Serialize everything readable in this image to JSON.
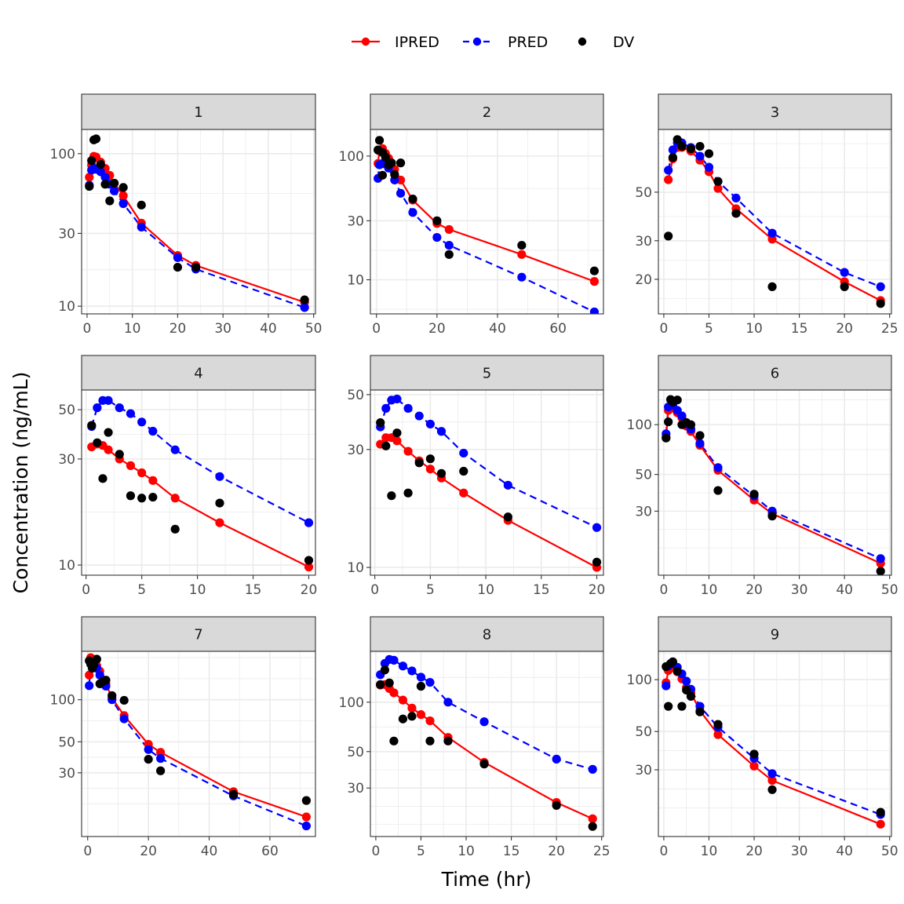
{
  "chart_data": {
    "type": "line",
    "facet": "ID",
    "xlabel": "Time (hr)",
    "ylabel": "Concentration (ng/mL)",
    "yscale": "log10",
    "legend": {
      "position": "top",
      "entries": [
        {
          "name": "IPRED",
          "color": "#ff0000",
          "style": "solid line with points"
        },
        {
          "name": "PRED",
          "color": "#0000ff",
          "style": "dashed line with points"
        },
        {
          "name": "DV",
          "color": "#000000",
          "style": "points"
        }
      ]
    },
    "colors": {
      "IPRED": "#ff0000",
      "PRED": "#0000ff",
      "DV": "#000000"
    },
    "panels": [
      {
        "id": "1",
        "xlim": [
          -1.2,
          50.4
        ],
        "xticks": [
          0,
          10,
          20,
          30,
          40,
          50
        ],
        "ylim": [
          8.9,
          144
        ],
        "yticks": [
          10,
          30,
          100
        ],
        "x": [
          0.5,
          1,
          1.5,
          2,
          3,
          4,
          5,
          6,
          8,
          12,
          20,
          24,
          48
        ],
        "IPRED": [
          70,
          84,
          96,
          95,
          88,
          80,
          72,
          64,
          53,
          35,
          21.5,
          18.5,
          10.6
        ],
        "PRED": [
          62,
          78,
          80,
          79,
          76,
          70,
          63,
          57,
          47,
          33,
          20.8,
          17.5,
          9.8
        ],
        "DV": [
          [
            0.5,
            61
          ],
          [
            1,
            90
          ],
          [
            1.5,
            123
          ],
          [
            2,
            125
          ],
          [
            3,
            85
          ],
          [
            4,
            63
          ],
          [
            5,
            49
          ],
          [
            6,
            64
          ],
          [
            8,
            60
          ],
          [
            12,
            46
          ],
          [
            20,
            18
          ],
          [
            24,
            18
          ],
          [
            48,
            11
          ]
        ]
      },
      {
        "id": "2",
        "xlim": [
          -2,
          75
        ],
        "xticks": [
          0,
          20,
          40,
          60
        ],
        "ylim": [
          5.3,
          164
        ],
        "yticks": [
          10,
          30,
          100
        ],
        "x": [
          0.5,
          1,
          2,
          3,
          4,
          6,
          8,
          12,
          20,
          24,
          48,
          72
        ],
        "IPRED": [
          87,
          110,
          115,
          105,
          96,
          78,
          64,
          44,
          28.5,
          25.5,
          16,
          9.7
        ],
        "PRED": [
          66,
          85,
          87,
          86,
          80,
          64,
          50,
          35,
          22,
          19,
          10.5,
          5.5
        ],
        "DV": [
          [
            0.5,
            112
          ],
          [
            1,
            134
          ],
          [
            2,
            107
          ],
          [
            3,
            98
          ],
          [
            4,
            85
          ],
          [
            5,
            88
          ],
          [
            6,
            71
          ],
          [
            8,
            88
          ],
          [
            12,
            45
          ],
          [
            20,
            30
          ],
          [
            24,
            16
          ],
          [
            48,
            19
          ],
          [
            72,
            11.8
          ],
          [
            2,
            70
          ]
        ]
      },
      {
        "id": "3",
        "xlim": [
          -0.6,
          25.2
        ],
        "xticks": [
          0,
          5,
          10,
          15,
          20,
          25
        ],
        "ylim": [
          13.9,
          96.7
        ],
        "yticks": [
          20,
          30,
          50
        ],
        "x": [
          0.5,
          1,
          1.5,
          2,
          3,
          4,
          5,
          6,
          8,
          12,
          20,
          24
        ],
        "IPRED": [
          57,
          71,
          80,
          80,
          77,
          70,
          62,
          52,
          42,
          30.5,
          19.5,
          16
        ],
        "PRED": [
          63,
          78,
          84,
          84,
          80,
          73,
          65,
          56,
          47,
          32.5,
          21.5,
          18.5
        ],
        "DV": [
          [
            0.5,
            31.5
          ],
          [
            1,
            72
          ],
          [
            1.5,
            87
          ],
          [
            2,
            81
          ],
          [
            3,
            79
          ],
          [
            4,
            81
          ],
          [
            5,
            75
          ],
          [
            6,
            56
          ],
          [
            8,
            40
          ],
          [
            12,
            18.5
          ],
          [
            20,
            18.5
          ],
          [
            24,
            15.5
          ]
        ]
      },
      {
        "id": "4",
        "xlim": [
          -0.4,
          20.6
        ],
        "xticks": [
          0,
          5,
          10,
          15,
          20
        ],
        "ylim": [
          9.0,
          61.3
        ],
        "yticks": [
          10,
          30,
          50
        ],
        "x": [
          0.5,
          1,
          1.5,
          2,
          3,
          4,
          5,
          6,
          8,
          12,
          20
        ],
        "IPRED": [
          34,
          35,
          34.5,
          33,
          30,
          28,
          26,
          24,
          20,
          15.5,
          9.8
        ],
        "PRED": [
          42,
          51,
          55,
          55,
          51,
          48,
          44,
          40,
          33,
          25,
          15.5
        ],
        "DV": [
          [
            0.5,
            42.5
          ],
          [
            1,
            35.5
          ],
          [
            1.5,
            24.5
          ],
          [
            2,
            39.5
          ],
          [
            3,
            31.5
          ],
          [
            4,
            20.5
          ],
          [
            5,
            20
          ],
          [
            6,
            20.2
          ],
          [
            8,
            14.5
          ],
          [
            12,
            19
          ],
          [
            20,
            10.5
          ]
        ]
      },
      {
        "id": "5",
        "xlim": [
          -0.4,
          20.6
        ],
        "xticks": [
          0,
          5,
          10,
          15,
          20
        ],
        "ylim": [
          9.3,
          52.2
        ],
        "yticks": [
          10,
          30,
          50
        ],
        "x": [
          0.5,
          1,
          1.5,
          2,
          3,
          4,
          5,
          6,
          8,
          12,
          20
        ],
        "IPRED": [
          31.5,
          33.5,
          33.5,
          32.5,
          29.5,
          27,
          25,
          23,
          20,
          15.5,
          10
        ],
        "PRED": [
          37,
          44,
          47.5,
          48,
          44,
          41,
          38,
          35.5,
          29,
          21.5,
          14.5
        ],
        "DV": [
          [
            0.5,
            38.5
          ],
          [
            1,
            31
          ],
          [
            1.5,
            19.5
          ],
          [
            2,
            35
          ],
          [
            3,
            20
          ],
          [
            4,
            26.5
          ],
          [
            5,
            27.5
          ],
          [
            6,
            24
          ],
          [
            8,
            24.5
          ],
          [
            12,
            16
          ],
          [
            20,
            10.5
          ]
        ]
      },
      {
        "id": "6",
        "xlim": [
          -1.2,
          50.4
        ],
        "xticks": [
          0,
          10,
          20,
          30,
          40,
          50
        ],
        "ylim": [
          12.3,
          162
        ],
        "yticks": [
          30,
          50,
          100
        ],
        "x": [
          0.5,
          1,
          2,
          3,
          4,
          5,
          6,
          8,
          12,
          20,
          24,
          48
        ],
        "IPRED": [
          84,
          122,
          126,
          118,
          110,
          98,
          91,
          75,
          53,
          35,
          29,
          14.5
        ],
        "PRED": [
          88,
          128,
          131,
          122,
          113,
          101,
          94,
          77,
          55,
          37,
          30,
          15.5
        ],
        "DV": [
          [
            0.5,
            83
          ],
          [
            1,
            104
          ],
          [
            1.5,
            142
          ],
          [
            2,
            137
          ],
          [
            3,
            141
          ],
          [
            4,
            100
          ],
          [
            5,
            103
          ],
          [
            6,
            100
          ],
          [
            8,
            86
          ],
          [
            12,
            40
          ],
          [
            20,
            38
          ],
          [
            24,
            28
          ],
          [
            48,
            13
          ]
        ]
      },
      {
        "id": "7",
        "xlim": [
          -2,
          75
        ],
        "xticks": [
          0,
          20,
          40,
          60
        ],
        "ylim": [
          10.5,
          222
        ],
        "yticks": [
          30,
          50,
          100
        ],
        "x": [
          0.5,
          1,
          2,
          3,
          4,
          6,
          8,
          12,
          20,
          24,
          48,
          72
        ],
        "IPRED": [
          150,
          200,
          190,
          175,
          160,
          130,
          103,
          77,
          48,
          42,
          22,
          14.5
        ],
        "PRED": [
          126,
          180,
          180,
          168,
          150,
          125,
          100,
          73,
          44,
          38,
          20.5,
          12.5
        ],
        "DV": [
          [
            0.5,
            190
          ],
          [
            1,
            180
          ],
          [
            1.5,
            168
          ],
          [
            2,
            178
          ],
          [
            3,
            195
          ],
          [
            4,
            130
          ],
          [
            5,
            135
          ],
          [
            6,
            138
          ],
          [
            8,
            107
          ],
          [
            12,
            99
          ],
          [
            20,
            37.5
          ],
          [
            24,
            31
          ],
          [
            48,
            21
          ],
          [
            72,
            19
          ]
        ]
      },
      {
        "id": "8",
        "xlim": [
          -0.6,
          25.2
        ],
        "xticks": [
          0,
          5,
          10,
          15,
          20,
          25
        ],
        "ylim": [
          15.2,
          204
        ],
        "yticks": [
          30,
          50,
          100
        ],
        "x": [
          0.5,
          1,
          1.5,
          2,
          3,
          4,
          5,
          6,
          8,
          12,
          20,
          24
        ],
        "IPRED": [
          127,
          128,
          121,
          114,
          103,
          92,
          84,
          77,
          61,
          43,
          24.5,
          19.5
        ],
        "PRED": [
          147,
          172,
          182,
          180,
          166,
          155,
          142,
          132,
          100,
          76,
          45,
          39
        ],
        "DV": [
          [
            0.5,
            128
          ],
          [
            1,
            157
          ],
          [
            1.5,
            131
          ],
          [
            2,
            58
          ],
          [
            3,
            79
          ],
          [
            4,
            82
          ],
          [
            5,
            125
          ],
          [
            6,
            58
          ],
          [
            8,
            58
          ],
          [
            12,
            42
          ],
          [
            20,
            23.5
          ],
          [
            24,
            17.5
          ]
        ]
      },
      {
        "id": "9",
        "xlim": [
          -1.2,
          50.4
        ],
        "xticks": [
          0,
          10,
          20,
          30,
          40,
          50
        ],
        "ylim": [
          12.3,
          146
        ],
        "yticks": [
          30,
          50,
          100
        ],
        "x": [
          0.5,
          1,
          2,
          3,
          4,
          5,
          6,
          8,
          12,
          20,
          24,
          48
        ],
        "IPRED": [
          96,
          113,
          118,
          111,
          101,
          90,
          84,
          66,
          48,
          31.5,
          26,
          14.5
        ],
        "PRED": [
          92,
          120,
          124,
          118,
          108,
          98,
          88,
          70,
          53,
          35,
          28.5,
          16.5
        ],
        "DV": [
          [
            0.5,
            119
          ],
          [
            1,
            70
          ],
          [
            1.5,
            124
          ],
          [
            2,
            127
          ],
          [
            3,
            112
          ],
          [
            4,
            70
          ],
          [
            5,
            87
          ],
          [
            6,
            80
          ],
          [
            8,
            65
          ],
          [
            12,
            55
          ],
          [
            20,
            37
          ],
          [
            24,
            23
          ],
          [
            48,
            17
          ]
        ]
      }
    ]
  }
}
